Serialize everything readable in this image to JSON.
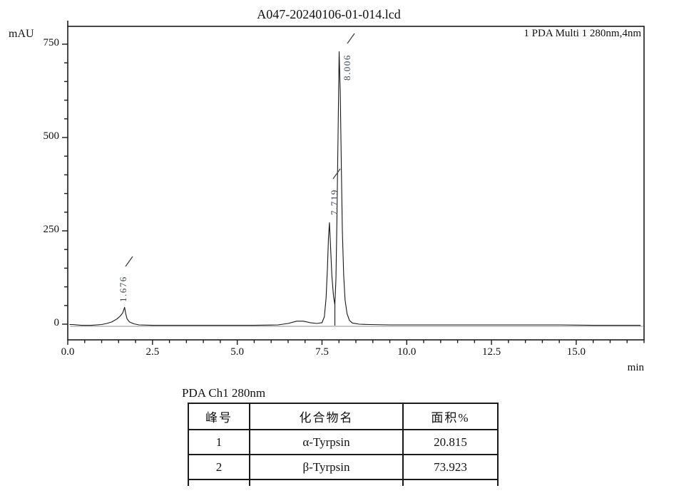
{
  "header": {
    "title": "A047-20240106-01-014.lcd"
  },
  "chart": {
    "detector_label": "1 PDA Multi 1 280nm,4nm",
    "y_unit": "mAU",
    "x_unit": "min"
  },
  "chart_data": {
    "type": "line",
    "title": "A047-20240106-01-014.lcd",
    "series_label": "1 PDA Multi 1 280nm,4nm",
    "xlabel": "min",
    "ylabel": "mAU",
    "xlim": [
      0.0,
      17.0
    ],
    "ylim": [
      -45,
      800
    ],
    "grid": false,
    "x_major_ticks": [
      0.0,
      2.5,
      5.0,
      7.5,
      10.0,
      12.5,
      15.0
    ],
    "x_major_tick_labels": [
      "0.0",
      "2.5",
      "5.0",
      "7.5",
      "10.0",
      "12.5",
      "15.0"
    ],
    "x_minor_tick_step_min": 0.5,
    "y_major_ticks": [
      0,
      250,
      500,
      750
    ],
    "y_major_tick_labels": [
      "0",
      "250",
      "500",
      "750"
    ],
    "y_minor_tick_step": 50,
    "peaks": [
      {
        "label": "1.676",
        "retention_min": 1.676,
        "height_mAU": 45
      },
      {
        "label": "7.719",
        "retention_min": 7.719,
        "height_mAU": 272
      },
      {
        "label": "8.006",
        "retention_min": 8.006,
        "height_mAU": 730
      }
    ],
    "valley_drop": {
      "t_min": 7.88,
      "from_mAU": 52
    },
    "trace_min_mAU": [
      [
        0.05,
        -1
      ],
      [
        0.15,
        -1
      ],
      [
        0.4,
        -3
      ],
      [
        0.7,
        -3
      ],
      [
        1.0,
        -1
      ],
      [
        1.15,
        2
      ],
      [
        1.3,
        6
      ],
      [
        1.45,
        14
      ],
      [
        1.55,
        22
      ],
      [
        1.62,
        30
      ],
      [
        1.676,
        45
      ],
      [
        1.71,
        28
      ],
      [
        1.75,
        14
      ],
      [
        1.82,
        6
      ],
      [
        1.95,
        1
      ],
      [
        2.1,
        -2
      ],
      [
        2.5,
        -3
      ],
      [
        3.5,
        -3
      ],
      [
        4.5,
        -3
      ],
      [
        5.5,
        -3
      ],
      [
        6.2,
        -2
      ],
      [
        6.5,
        2
      ],
      [
        6.75,
        8
      ],
      [
        6.95,
        8
      ],
      [
        7.15,
        4
      ],
      [
        7.35,
        2
      ],
      [
        7.5,
        4
      ],
      [
        7.57,
        20
      ],
      [
        7.62,
        70
      ],
      [
        7.66,
        150
      ],
      [
        7.69,
        230
      ],
      [
        7.719,
        272
      ],
      [
        7.75,
        215
      ],
      [
        7.79,
        130
      ],
      [
        7.84,
        75
      ],
      [
        7.88,
        52
      ],
      [
        7.91,
        120
      ],
      [
        7.94,
        280
      ],
      [
        7.97,
        480
      ],
      [
        8.006,
        730
      ],
      [
        8.04,
        620
      ],
      [
        8.07,
        420
      ],
      [
        8.1,
        250
      ],
      [
        8.14,
        130
      ],
      [
        8.18,
        65
      ],
      [
        8.24,
        28
      ],
      [
        8.31,
        10
      ],
      [
        8.4,
        3
      ],
      [
        8.6,
        0
      ],
      [
        8.9,
        -1
      ],
      [
        9.5,
        -2
      ],
      [
        10.5,
        -2
      ],
      [
        11.5,
        -2
      ],
      [
        12.5,
        -2
      ],
      [
        13.5,
        -2
      ],
      [
        14.5,
        -2
      ],
      [
        15.5,
        -3
      ],
      [
        16.3,
        -3
      ],
      [
        16.9,
        -3
      ]
    ]
  },
  "table": {
    "title": "PDA Ch1 280nm",
    "headers": [
      "峰号",
      "化合物名",
      "面积%"
    ],
    "rows": [
      [
        "1",
        "α-Tyrpsin",
        "20.815"
      ],
      [
        "2",
        "β-Tyrpsin",
        "73.923"
      ]
    ]
  }
}
